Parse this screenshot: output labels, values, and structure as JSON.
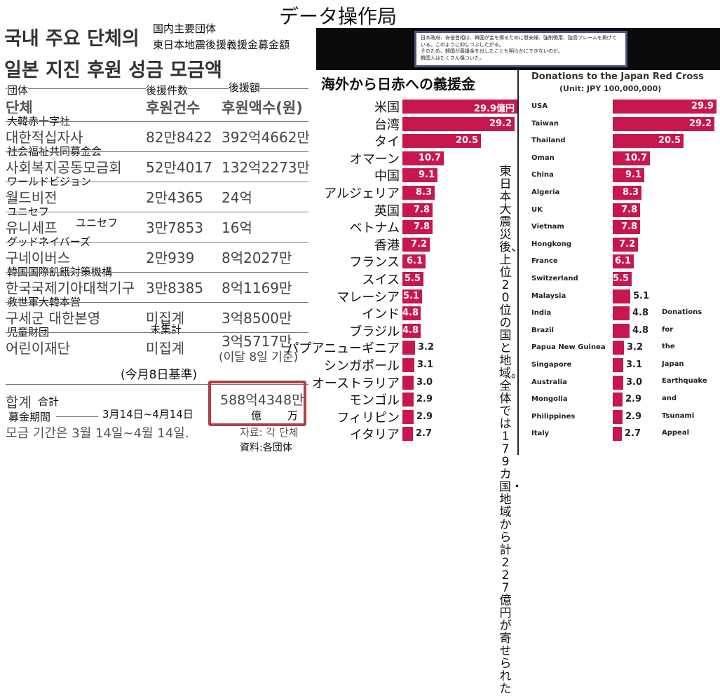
{
  "page_title": "データ操作局",
  "korean_table": {
    "heading_line1": "국내 주요 단체의",
    "heading_line2": "일본 지진 후원 성금 모금액",
    "jp_heading_line1": "国内主要団体",
    "jp_heading_line2": "東日本地震後援義援金募金額",
    "columns": {
      "org_jp": "団体",
      "org_kr": "단체",
      "count_jp": "後援件数",
      "count_kr": "후원건수",
      "amount_jp": "後援額",
      "amount_kr": "후원액수(원)"
    },
    "rows": [
      {
        "jp": "大韓赤十字社",
        "kr": "대한적십자사",
        "count": "82만8422",
        "amount": "392억4662만"
      },
      {
        "jp": "社会福祉共同募金会",
        "kr": "사회복지공동모금회",
        "count": "52만4017",
        "amount": "132억2273만"
      },
      {
        "jp": "ワールドビジョン",
        "kr": "월드비전",
        "count": "2만4365",
        "amount": "24억"
      },
      {
        "jp": "ユニセフ",
        "kr": "유니세프",
        "kr_jp": "ユニセフ",
        "count": "3만7853",
        "amount": "16억"
      },
      {
        "jp": "グッドネイバーズ",
        "kr": "구네이버스",
        "count": "2만939",
        "amount": "8억2027만"
      },
      {
        "jp": "韓国国際飢餓対策機構",
        "kr": "한국국제기아대책기구",
        "count": "3만8385",
        "amount": "8억1169만"
      },
      {
        "jp": "救世軍大韓本営",
        "kr": "구세군 대한본영",
        "count": "미집계",
        "amount": "3억8500만"
      },
      {
        "jp": "児童財団",
        "kr": "어린이재단",
        "count": "미집계",
        "count_jp": "未集計",
        "amount": "3억5717만",
        "amount_note": "(이달 8일 기준)"
      }
    ],
    "note_jp": "(今月8日基準)",
    "total": {
      "kr": "합계",
      "jp": "合計",
      "amount": "588억4348만",
      "oku": "億",
      "man": "万"
    },
    "period": {
      "jp": "募金期間",
      "jp_value": "3月14日~4月14日",
      "kr": "모금 기간은 3월 14일~4월 14일.",
      "source_kr": "자료: 각 단체",
      "source_jp": "資料:各団体"
    }
  },
  "callout": {
    "lines": [
      "日本政府、安倍首相は、韓国が金を得るために慰安婦、強制徴用、独島フレームを掲げている。このように抑しつぶしたがる。",
      "そのため、韓国が義援金を出したことも明らかにできないのだ。",
      "韓国人はたくさん傷ついた。"
    ]
  },
  "chart_data": [
    {
      "type": "bar",
      "orientation": "horizontal",
      "title": "海外から日赤への義援金",
      "categories": [
        "米国",
        "台湾",
        "タイ",
        "オマーン",
        "中国",
        "アルジェリア",
        "英国",
        "ベトナム",
        "香港",
        "フランス",
        "スイス",
        "マレーシア",
        "インド",
        "ブラジル",
        "パプアニューギニア",
        "シンガポール",
        "オーストラリア",
        "モンゴル",
        "フィリピン",
        "イタリア"
      ],
      "values": [
        29.9,
        29.2,
        20.5,
        10.7,
        9.1,
        8.3,
        7.8,
        7.8,
        7.2,
        6.1,
        5.5,
        5.1,
        4.8,
        4.8,
        3.2,
        3.1,
        3.0,
        2.9,
        2.9,
        2.7
      ],
      "value_labels": [
        "29.9億円",
        "29.2",
        "20.5",
        "10.7",
        "9.1",
        "8.3",
        "7.8",
        "7.8",
        "7.2",
        "6.1",
        "5.5",
        "5.1",
        "4.8",
        "4.8",
        "3.2",
        "3.1",
        "3.0",
        "2.9",
        "2.9",
        "2.7"
      ],
      "annotation": "東日本大震災後、上位20位の国と地域。全体では179カ国・地域から計227億円が寄せられた",
      "bar_color": "#c8174e"
    },
    {
      "type": "bar",
      "orientation": "horizontal",
      "title": "Donations to the Japan Red Cross",
      "subtitle": "(Unit: JPY 100,000,000)",
      "categories": [
        "USA",
        "Taiwan",
        "Thailand",
        "Oman",
        "China",
        "Algeria",
        "UK",
        "Vietnam",
        "Hongkong",
        "France",
        "Switzerland",
        "Malaysia",
        "India",
        "Brazil",
        "Papua New Guinea",
        "Singapore",
        "Australia",
        "Mongolia",
        "Philippines",
        "Italy"
      ],
      "values": [
        29.9,
        29.2,
        20.5,
        10.7,
        9.1,
        8.3,
        7.8,
        7.8,
        7.2,
        6.1,
        5.5,
        5.1,
        4.8,
        4.8,
        3.2,
        3.1,
        3.0,
        2.9,
        2.9,
        2.7
      ],
      "value_labels": [
        "29.9",
        "29.2",
        "20.5",
        "10.7",
        "9.1",
        "8.3",
        "7.8",
        "7.8",
        "7.2",
        "6.1",
        "5.5",
        "5.1",
        "4.8",
        "4.8",
        "3.2",
        "3.1",
        "3.0",
        "2.9",
        "2.9",
        "2.7"
      ],
      "annotation_words": [
        "Donations",
        "for",
        "the",
        "Japan",
        "Earthquake",
        "and",
        "Tsunami",
        "Appeal"
      ],
      "bar_color": "#c8174e"
    }
  ]
}
